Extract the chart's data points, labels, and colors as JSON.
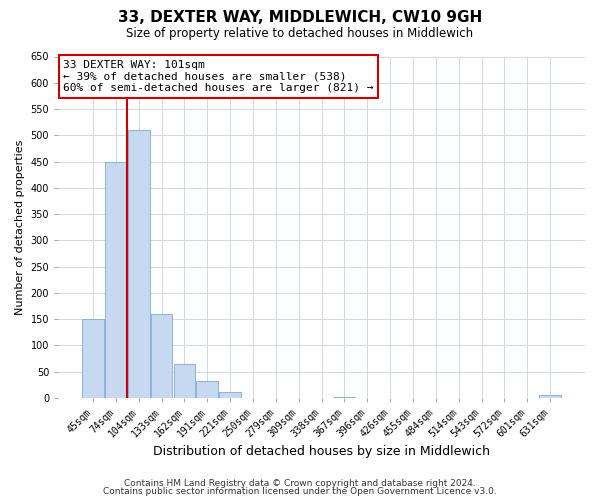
{
  "title": "33, DEXTER WAY, MIDDLEWICH, CW10 9GH",
  "subtitle": "Size of property relative to detached houses in Middlewich",
  "xlabel": "Distribution of detached houses by size in Middlewich",
  "ylabel": "Number of detached properties",
  "footer_line1": "Contains HM Land Registry data © Crown copyright and database right 2024.",
  "footer_line2": "Contains public sector information licensed under the Open Government Licence v3.0.",
  "bar_labels": [
    "45sqm",
    "74sqm",
    "104sqm",
    "133sqm",
    "162sqm",
    "191sqm",
    "221sqm",
    "250sqm",
    "279sqm",
    "309sqm",
    "338sqm",
    "367sqm",
    "396sqm",
    "426sqm",
    "455sqm",
    "484sqm",
    "514sqm",
    "543sqm",
    "572sqm",
    "601sqm",
    "631sqm"
  ],
  "bar_heights": [
    150,
    450,
    510,
    160,
    65,
    33,
    12,
    0,
    0,
    0,
    0,
    2,
    0,
    0,
    0,
    0,
    0,
    0,
    0,
    0,
    5
  ],
  "bar_color": "#c6d9f0",
  "bar_edge_color": "#8ab4d8",
  "vline_x": 1.5,
  "vline_color": "#cc0000",
  "annotation_title": "33 DEXTER WAY: 101sqm",
  "annotation_line1": "← 39% of detached houses are smaller (538)",
  "annotation_line2": "60% of semi-detached houses are larger (821) →",
  "annotation_box_color": "#ffffff",
  "annotation_box_edge_color": "#cc0000",
  "ylim": [
    0,
    650
  ],
  "yticks": [
    0,
    50,
    100,
    150,
    200,
    250,
    300,
    350,
    400,
    450,
    500,
    550,
    600,
    650
  ],
  "bg_color": "#ffffff",
  "grid_color": "#d0d8e8",
  "title_fontsize": 11,
  "subtitle_fontsize": 8.5,
  "ylabel_fontsize": 8,
  "xlabel_fontsize": 9,
  "tick_fontsize": 7,
  "annotation_fontsize": 8,
  "footer_fontsize": 6.5
}
